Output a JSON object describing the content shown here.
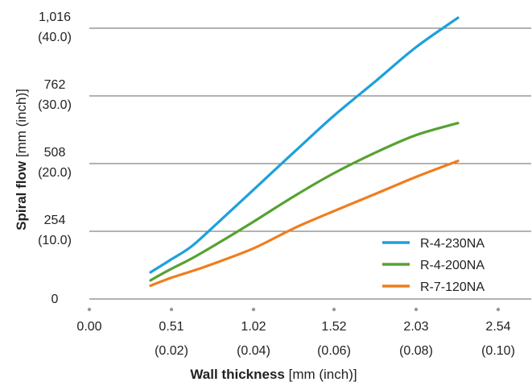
{
  "chart_data": {
    "type": "line",
    "xlabel_bold": "Wall thickness",
    "xlabel_unit": "[mm (inch)]",
    "ylabel_bold": "Spiral flow",
    "ylabel_unit": "[mm (inch)]",
    "xlim": [
      0,
      2.54
    ],
    "ylim": [
      0,
      1016
    ],
    "x_ticks": [
      {
        "value": 0,
        "label": "0.00",
        "sub": ""
      },
      {
        "value": 0.51,
        "label": "0.51",
        "sub": "(0.02)"
      },
      {
        "value": 1.02,
        "label": "1.02",
        "sub": "(0.04)"
      },
      {
        "value": 1.52,
        "label": "1.52",
        "sub": "(0.06)"
      },
      {
        "value": 2.03,
        "label": "2.03",
        "sub": "(0.08)"
      },
      {
        "value": 2.54,
        "label": "2.54",
        "sub": "(0.10)"
      }
    ],
    "y_ticks": [
      {
        "value": 0,
        "label": "0",
        "sub": ""
      },
      {
        "value": 254,
        "label": "254",
        "sub": "(10.0)"
      },
      {
        "value": 508,
        "label": "508",
        "sub": "(20.0)"
      },
      {
        "value": 762,
        "label": "762",
        "sub": "(30.0)"
      },
      {
        "value": 1016,
        "label": "1,016",
        "sub": "(40.0)"
      }
    ],
    "grid": "horizontal",
    "legend_position": "bottom-right",
    "series": [
      {
        "name": "R-4-230NA",
        "color": "#1ea0dc",
        "x": [
          0.38,
          0.5,
          0.63,
          0.76,
          1.02,
          1.27,
          1.52,
          1.78,
          2.03,
          2.29
        ],
        "y": [
          100,
          145,
          195,
          265,
          410,
          550,
          688,
          818,
          945,
          1055
        ]
      },
      {
        "name": "R-4-200NA",
        "color": "#56a232",
        "x": [
          0.38,
          0.5,
          0.63,
          0.76,
          1.02,
          1.27,
          1.52,
          1.78,
          2.03,
          2.29
        ],
        "y": [
          70,
          110,
          150,
          195,
          290,
          385,
          472,
          550,
          615,
          660
        ]
      },
      {
        "name": "R-7-120NA",
        "color": "#f07d1e",
        "x": [
          0.38,
          0.5,
          0.63,
          0.76,
          1.02,
          1.27,
          1.52,
          1.78,
          2.03,
          2.29
        ],
        "y": [
          50,
          78,
          103,
          130,
          190,
          265,
          330,
          395,
          458,
          518
        ]
      }
    ]
  }
}
